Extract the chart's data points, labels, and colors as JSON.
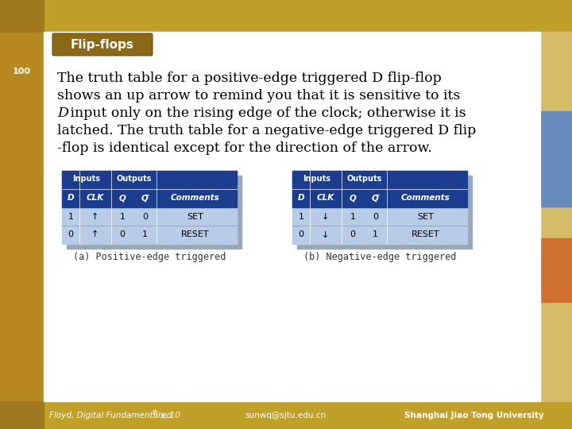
{
  "title": "Flip-flops",
  "body_lines": [
    "The truth table for a positive-edge triggered D flip-flop",
    "shows an up arrow to remind you that it is sensitive to its",
    "D input only on the rising edge of the clock; otherwise it is",
    "latched. The truth table for a negative-edge triggered D flip",
    "-flop is identical except for the direction of the arrow."
  ],
  "italic_word": "D",
  "table_header_bg": "#1a3d8f",
  "table_body_bg": "#b8cce8",
  "table_shadow_bg": "#9aa8bc",
  "table_a_caption": "(a) Positive-edge triggered",
  "table_b_caption": "(b) Negative-edge triggered",
  "footer_left": "Floyd, Digital Fundamentals, 10",
  "footer_left_super": "th",
  "footer_left2": " ed",
  "footer_center": "sunwq@sjtu.edu.cn",
  "footer_right": "Shanghai Jiao Tong University",
  "white_bg": "#ffffff",
  "left_strip_color": "#b8892a",
  "top_bar_color": "#c8a838",
  "footer_bar_color": "#c8a030",
  "right_bar_color": "#d4b848",
  "right_blue_color": "#6688bb",
  "right_orange_color": "#d07030",
  "title_box_bg": "#8b6914",
  "title_text_color": "#ffffff",
  "label_100_color": "#ffffff",
  "body_text_color": "#000000",
  "caption_text_color": "#333333",
  "footer_text_color": "#ffffff"
}
